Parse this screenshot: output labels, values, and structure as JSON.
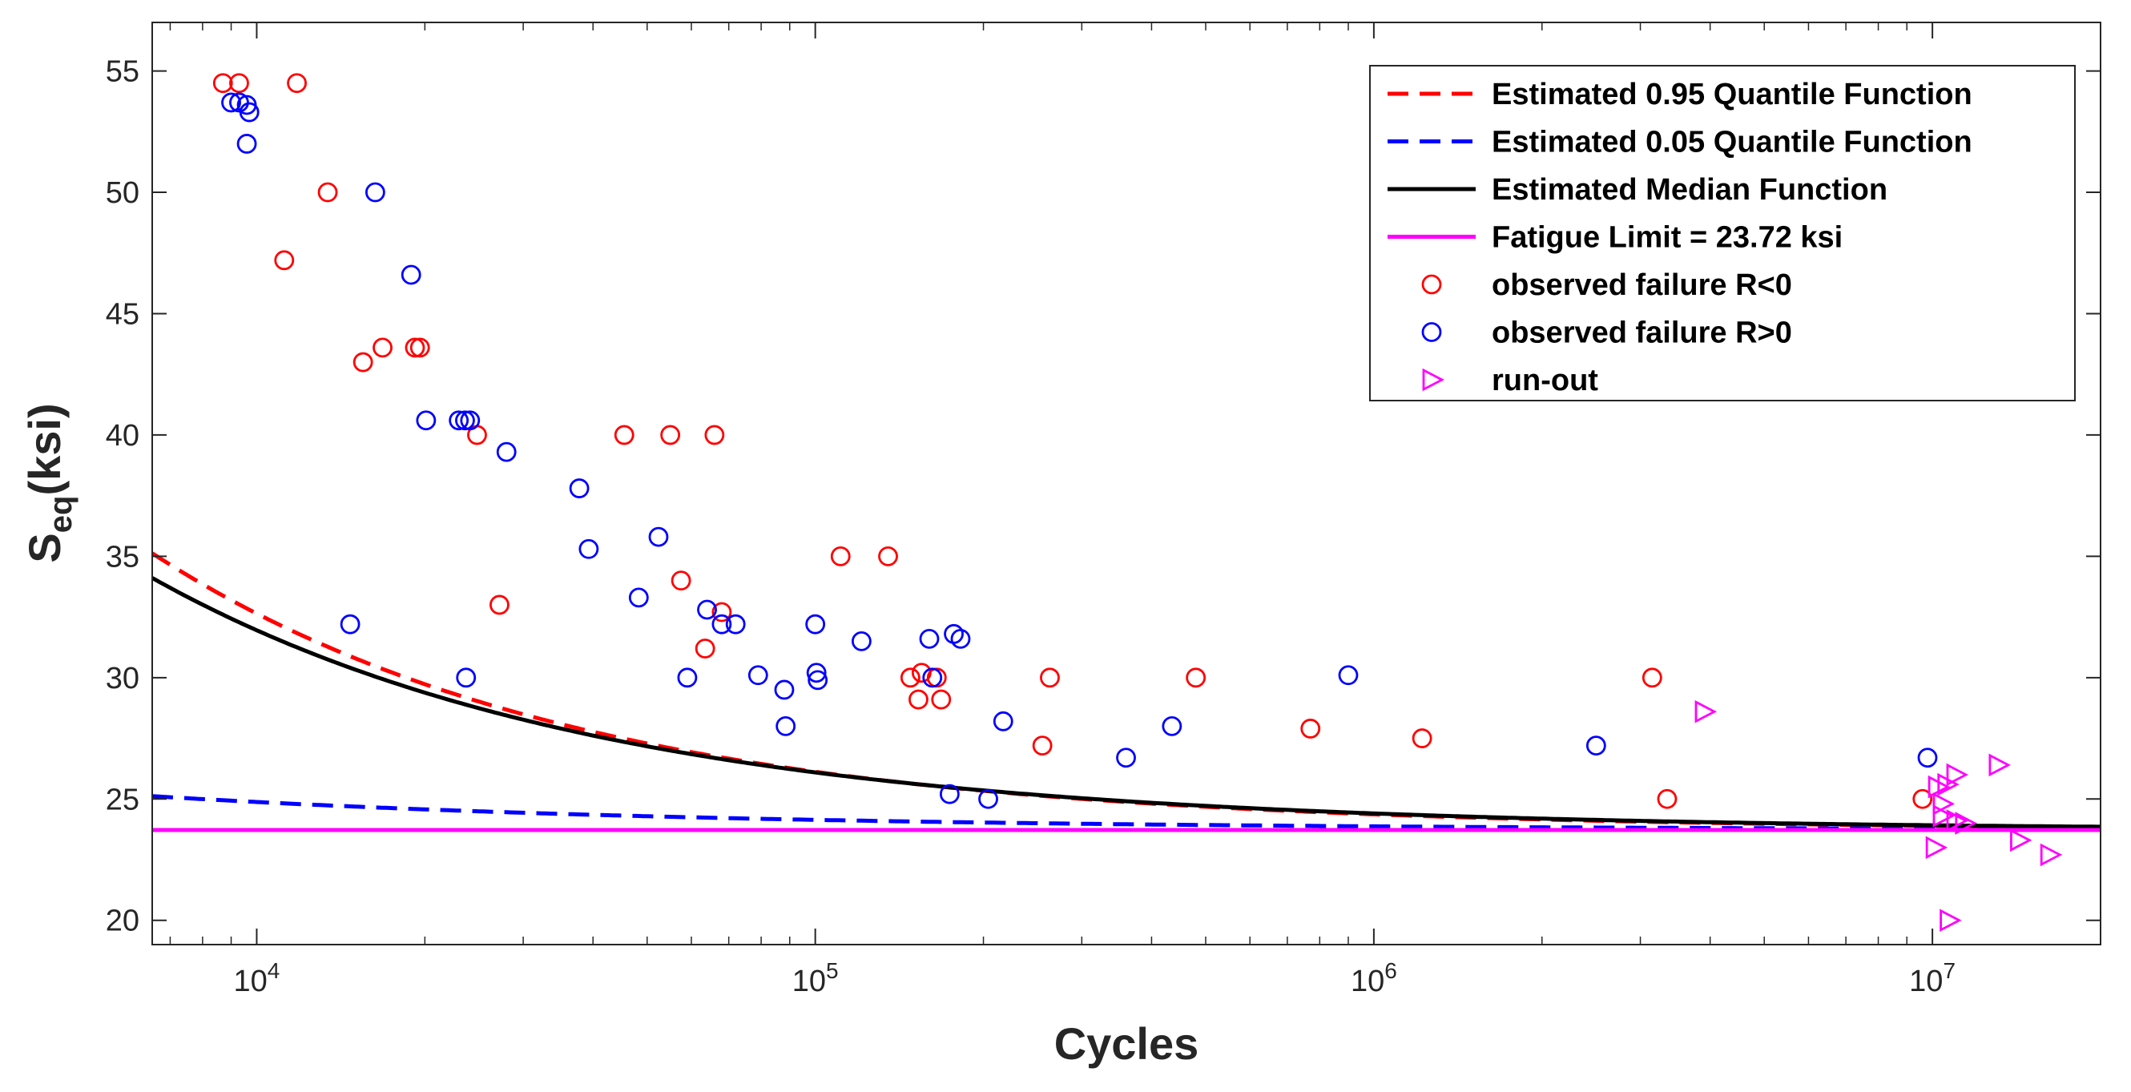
{
  "chart_data": {
    "type": "scatter",
    "xlabel": "Cycles",
    "ylabel_main": "S",
    "ylabel_sub": "eq",
    "ylabel_suffix": "(ksi)",
    "xscale": "log",
    "xlim": [
      6500,
      20000000
    ],
    "ylim": [
      19,
      57
    ],
    "grid": false,
    "legend_position": "top-right",
    "x_ticks": [
      {
        "value": 10000,
        "base": "10",
        "exp": "4"
      },
      {
        "value": 100000,
        "base": "10",
        "exp": "5"
      },
      {
        "value": 1000000,
        "base": "10",
        "exp": "6"
      },
      {
        "value": 10000000,
        "base": "10",
        "exp": "7"
      }
    ],
    "y_ticks": [
      20,
      25,
      30,
      35,
      40,
      45,
      50,
      55
    ],
    "curves": {
      "q95": {
        "A": 1700,
        "b": 0.57,
        "color": "#ff0000",
        "dash": true
      },
      "q05": {
        "A": 66.5,
        "b": 0.44,
        "color": "#0000ff",
        "dash": true
      },
      "median": {
        "A": 1190,
        "b": 0.54,
        "color": "#000000",
        "dash": false
      }
    },
    "fatigue_limit": 23.72,
    "series": [
      {
        "name": "observed failure R<0",
        "marker": "circle",
        "color": "#ff0000",
        "points": [
          [
            8700,
            54.5
          ],
          [
            9300,
            54.5
          ],
          [
            11800,
            54.5
          ],
          [
            11200,
            47.2
          ],
          [
            13400,
            50.0
          ],
          [
            15500,
            43.0
          ],
          [
            16800,
            43.6
          ],
          [
            19200,
            43.6
          ],
          [
            19600,
            43.6
          ],
          [
            24800,
            40.0
          ],
          [
            27200,
            33.0
          ],
          [
            45500,
            40.0
          ],
          [
            55000,
            40.0
          ],
          [
            66000,
            40.0
          ],
          [
            57500,
            34.0
          ],
          [
            63500,
            31.2
          ],
          [
            68000,
            32.7
          ],
          [
            111000,
            35.0
          ],
          [
            135000,
            35.0
          ],
          [
            148000,
            30.0
          ],
          [
            155000,
            30.2
          ],
          [
            153000,
            29.1
          ],
          [
            165000,
            30.0
          ],
          [
            168000,
            29.1
          ],
          [
            263000,
            30.0
          ],
          [
            255000,
            27.2
          ],
          [
            480000,
            30.0
          ],
          [
            770000,
            27.9
          ],
          [
            1220000,
            27.5
          ],
          [
            3150000,
            30.0
          ],
          [
            3350000,
            25.0
          ],
          [
            9600000,
            25.0
          ]
        ]
      },
      {
        "name": "observed failure R>0",
        "marker": "circle",
        "color": "#0000ff",
        "points": [
          [
            9000,
            53.7
          ],
          [
            9300,
            53.7
          ],
          [
            9600,
            53.6
          ],
          [
            9700,
            53.3
          ],
          [
            9600,
            52.0
          ],
          [
            16300,
            50.0
          ],
          [
            18900,
            46.6
          ],
          [
            20100,
            40.6
          ],
          [
            23000,
            40.6
          ],
          [
            23600,
            40.6
          ],
          [
            24100,
            40.6
          ],
          [
            28000,
            39.3
          ],
          [
            14700,
            32.2
          ],
          [
            23700,
            30.0
          ],
          [
            37800,
            37.8
          ],
          [
            39300,
            35.3
          ],
          [
            52400,
            35.8
          ],
          [
            48300,
            33.3
          ],
          [
            59000,
            30.0
          ],
          [
            64000,
            32.8
          ],
          [
            68000,
            32.2
          ],
          [
            72000,
            32.2
          ],
          [
            79000,
            30.1
          ],
          [
            88000,
            29.5
          ],
          [
            88500,
            28.0
          ],
          [
            100000,
            32.2
          ],
          [
            100500,
            30.2
          ],
          [
            101000,
            29.9
          ],
          [
            121000,
            31.5
          ],
          [
            160000,
            31.6
          ],
          [
            162000,
            30.0
          ],
          [
            177000,
            31.8
          ],
          [
            182000,
            31.6
          ],
          [
            174000,
            25.2
          ],
          [
            204000,
            25.0
          ],
          [
            217000,
            28.2
          ],
          [
            360000,
            26.7
          ],
          [
            435000,
            28.0
          ],
          [
            900000,
            30.1
          ],
          [
            2500000,
            27.2
          ],
          [
            9800000,
            26.7
          ]
        ]
      },
      {
        "name": "run-out",
        "marker": "triangle-right",
        "color": "#ff00ff",
        "points": [
          [
            3900000,
            28.6
          ],
          [
            10200000,
            25.5
          ],
          [
            10600000,
            25.6
          ],
          [
            11000000,
            26.0
          ],
          [
            10400000,
            24.8
          ],
          [
            10400000,
            24.3
          ],
          [
            11000000,
            24.1
          ],
          [
            11400000,
            24.0
          ],
          [
            10100000,
            23.0
          ],
          [
            10700000,
            20.0
          ],
          [
            13100000,
            26.4
          ],
          [
            14300000,
            23.3
          ],
          [
            16200000,
            22.7
          ]
        ]
      }
    ],
    "legend": [
      {
        "label": "Estimated 0.95 Quantile Function",
        "kind": "dashed",
        "color": "#ff0000"
      },
      {
        "label": "Estimated 0.05 Quantile Function",
        "kind": "dashed",
        "color": "#0000ff"
      },
      {
        "label": "Estimated Median Function",
        "kind": "solid",
        "color": "#000000"
      },
      {
        "label": "Fatigue Limit = 23.72 ksi",
        "kind": "solid",
        "color": "#ff00ff"
      },
      {
        "label": "observed failure R<0",
        "kind": "circle",
        "color": "#ff0000"
      },
      {
        "label": "observed failure R>0",
        "kind": "circle",
        "color": "#0000ff"
      },
      {
        "label": "run-out",
        "kind": "triangle",
        "color": "#ff00ff"
      }
    ]
  }
}
